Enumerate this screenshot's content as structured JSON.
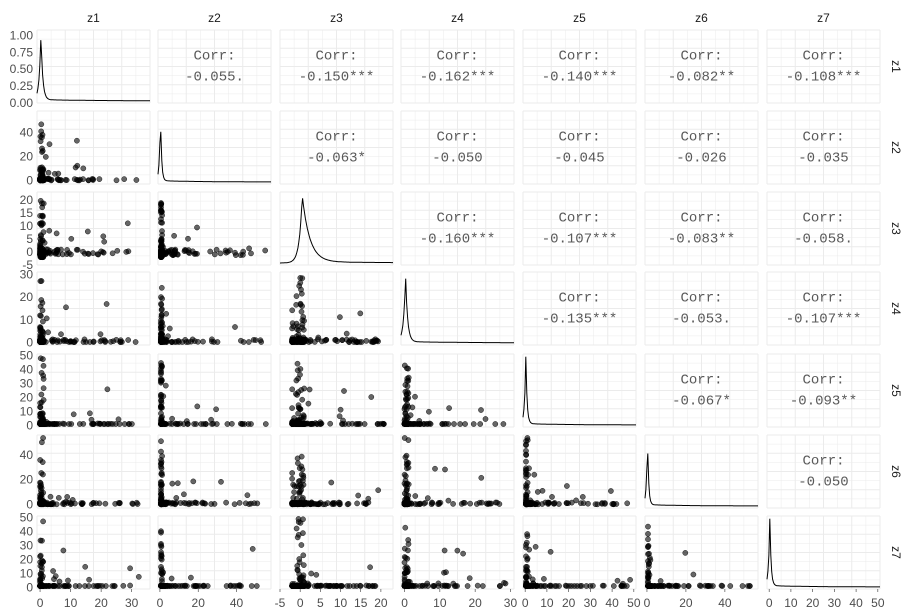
{
  "chart_data": {
    "type": "scatter-matrix",
    "variables": [
      "z1",
      "z2",
      "z3",
      "z4",
      "z5",
      "z6",
      "z7"
    ],
    "corr_label": "Corr:",
    "correlations": [
      [
        "",
        "-0.055.",
        "-0.150***",
        "-0.162***",
        "-0.140***",
        "-0.082**",
        "-0.108***"
      ],
      [
        "",
        "",
        "-0.063*",
        "-0.050",
        "-0.045",
        "-0.026",
        "-0.035"
      ],
      [
        "",
        "",
        "",
        "-0.160***",
        "-0.107***",
        "-0.083**",
        "-0.058."
      ],
      [
        "",
        "",
        "",
        "",
        "-0.135***",
        "-0.053.",
        "-0.107***"
      ],
      [
        "",
        "",
        "",
        "",
        "",
        "-0.067*",
        "-0.093**"
      ],
      [
        "",
        "",
        "",
        "",
        "",
        "",
        "-0.050"
      ]
    ],
    "x_ranges": [
      [
        -1,
        36
      ],
      [
        -1,
        58
      ],
      [
        -5,
        23
      ],
      [
        -1,
        31
      ],
      [
        -1,
        51
      ],
      [
        -1,
        57
      ],
      [
        -1,
        51
      ]
    ],
    "y_ranges": [
      [
        0,
        1.08
      ],
      [
        -3,
        58
      ],
      [
        -5,
        23
      ],
      [
        -1,
        31
      ],
      [
        -1,
        51
      ],
      [
        -3,
        56
      ],
      [
        -1,
        51
      ]
    ],
    "x_ticks": [
      [
        0,
        10,
        20,
        30
      ],
      [
        0,
        20,
        40
      ],
      [
        -5,
        0,
        5,
        10,
        15,
        20
      ],
      [
        0,
        10,
        20,
        30
      ],
      [
        0,
        10,
        20,
        30,
        40,
        50
      ],
      [
        0,
        20,
        40
      ],
      [
        0,
        10,
        20,
        30,
        40,
        50
      ]
    ],
    "y_ticks": [
      [
        "0.00",
        "0.25",
        "0.50",
        "0.75",
        "1.00"
      ],
      [
        "0",
        "20",
        "40"
      ],
      [
        "-5",
        "0",
        "5",
        "10",
        "15",
        "20"
      ],
      [
        "0",
        "10",
        "20",
        "30"
      ],
      [
        "0",
        "10",
        "20",
        "30",
        "40",
        "50"
      ],
      [
        "0",
        "20",
        "40"
      ],
      [
        "0",
        "10",
        "20",
        "30",
        "40",
        "50"
      ]
    ],
    "grid": true,
    "point_color": "#000000",
    "point_alpha": 0.6
  }
}
